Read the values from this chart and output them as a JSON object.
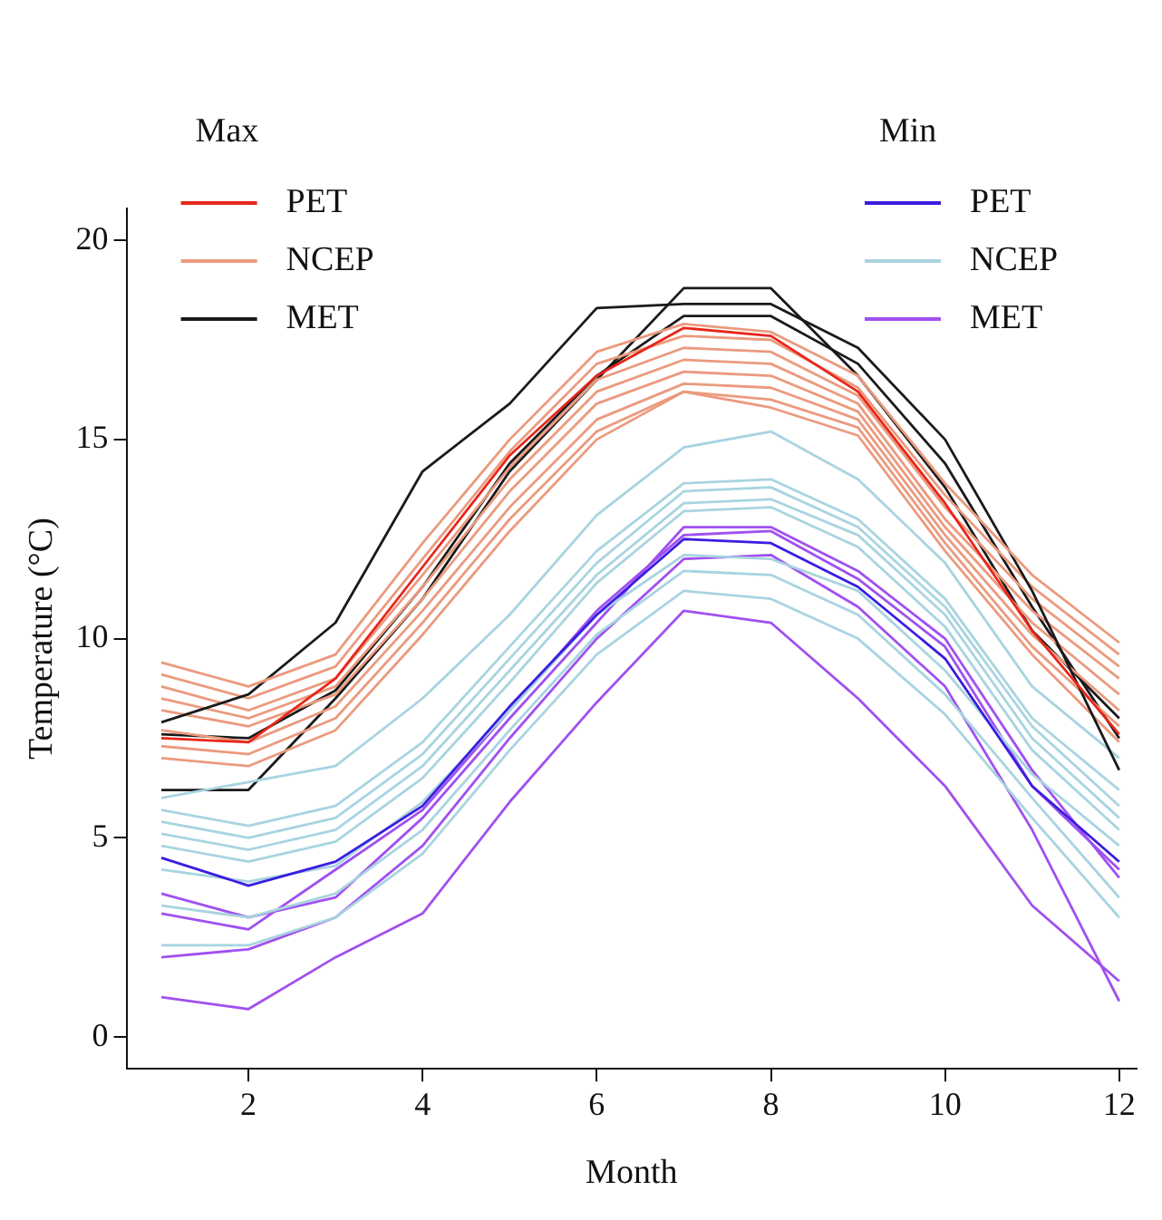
{
  "chart_data": {
    "type": "line",
    "xlabel": "Month",
    "ylabel": "Temperature (°C)",
    "x": [
      1,
      2,
      3,
      4,
      5,
      6,
      7,
      8,
      9,
      10,
      11,
      12
    ],
    "xlim": [
      0.6,
      12.2
    ],
    "ylim": [
      -0.8,
      20.8
    ],
    "xticks": [
      2,
      4,
      6,
      8,
      10,
      12
    ],
    "yticks": [
      0,
      5,
      10,
      15,
      20
    ],
    "grid": false,
    "legend": "top",
    "marker": "none",
    "line_style": "solid",
    "annotations": [
      "Max",
      "Min"
    ],
    "series": [
      {
        "name": "PET",
        "color": "#e8261a",
        "values": [
          7.5,
          7.4,
          9.0,
          11.8,
          14.6,
          16.6,
          17.8,
          17.6,
          16.2,
          13.4,
          10.2,
          7.6
        ]
      },
      {
        "name": "NCEP",
        "color": "#eb9a7e",
        "values": [
          9.4,
          8.8,
          9.6,
          12.4,
          15.0,
          17.2,
          17.9,
          17.7,
          16.6,
          13.9,
          11.6,
          9.9
        ]
      },
      {
        "name": "MET",
        "color": "#1a1a1a",
        "values": [
          7.9,
          8.6,
          10.4,
          14.2,
          15.9,
          18.3,
          18.4,
          18.4,
          17.3,
          15.0,
          11.2,
          6.7
        ]
      },
      {
        "name": "PET",
        "color": "#3a1de0",
        "values": [
          4.5,
          3.8,
          4.4,
          5.8,
          8.3,
          10.6,
          12.5,
          12.4,
          11.3,
          9.5,
          6.3,
          4.4
        ]
      },
      {
        "name": "NCEP",
        "color": "#a8d4e0",
        "values": [
          6.0,
          6.4,
          6.8,
          8.5,
          10.6,
          13.1,
          14.8,
          15.2,
          14.0,
          11.9,
          8.8,
          7.0
        ]
      },
      {
        "name": "MET",
        "color": "#a050f0",
        "values": [
          1.0,
          0.7,
          2.0,
          3.1,
          5.9,
          8.4,
          10.7,
          10.4,
          8.5,
          6.3,
          3.3,
          1.4
        ]
      },
      {
        "color": "#eb9a7e",
        "values": [
          9.1,
          8.5,
          9.3,
          12.0,
          14.7,
          16.9,
          17.6,
          17.5,
          16.3,
          13.6,
          11.3,
          9.6
        ]
      },
      {
        "color": "#eb9a7e",
        "values": [
          8.8,
          8.2,
          9.0,
          11.6,
          14.3,
          16.5,
          17.3,
          17.2,
          16.1,
          13.3,
          11.0,
          9.3
        ]
      },
      {
        "color": "#eb9a7e",
        "values": [
          8.5,
          8.0,
          8.8,
          11.3,
          14.0,
          16.2,
          17.0,
          16.9,
          15.9,
          13.0,
          10.7,
          9.0
        ]
      },
      {
        "color": "#eb9a7e",
        "values": [
          8.2,
          7.8,
          8.6,
          11.0,
          13.7,
          15.9,
          16.7,
          16.6,
          15.7,
          12.8,
          10.4,
          8.6
        ]
      },
      {
        "color": "#eb9a7e",
        "values": [
          7.7,
          7.4,
          8.3,
          10.7,
          13.3,
          15.5,
          16.4,
          16.3,
          15.5,
          12.6,
          10.1,
          8.2
        ]
      },
      {
        "color": "#eb9a7e",
        "values": [
          7.3,
          7.1,
          8.0,
          10.4,
          13.0,
          15.2,
          16.2,
          16.0,
          15.3,
          12.4,
          9.8,
          7.8
        ]
      },
      {
        "color": "#eb9a7e",
        "values": [
          7.0,
          6.8,
          7.7,
          10.1,
          12.7,
          15.0,
          16.2,
          15.8,
          15.1,
          12.2,
          9.6,
          7.4
        ]
      },
      {
        "color": "#1a1a1a",
        "values": [
          7.6,
          7.5,
          8.7,
          11.3,
          14.4,
          16.6,
          18.1,
          18.1,
          16.9,
          14.4,
          10.8,
          7.5
        ]
      },
      {
        "color": "#1a1a1a",
        "values": [
          6.2,
          6.2,
          8.5,
          11.0,
          14.2,
          16.5,
          18.8,
          18.8,
          16.6,
          13.8,
          10.2,
          8.0
        ]
      },
      {
        "color": "#a8d4e0",
        "values": [
          5.7,
          5.3,
          5.8,
          7.4,
          9.8,
          12.2,
          13.9,
          14.0,
          13.0,
          11.0,
          8.0,
          6.2
        ]
      },
      {
        "color": "#a8d4e0",
        "values": [
          5.4,
          5.0,
          5.5,
          7.1,
          9.5,
          11.9,
          13.7,
          13.8,
          12.8,
          10.8,
          7.8,
          5.8
        ]
      },
      {
        "color": "#a8d4e0",
        "values": [
          5.1,
          4.7,
          5.2,
          6.8,
          9.2,
          11.6,
          13.4,
          13.5,
          12.6,
          10.6,
          7.5,
          5.5
        ]
      },
      {
        "color": "#a8d4e0",
        "values": [
          4.8,
          4.4,
          4.9,
          6.5,
          8.9,
          11.4,
          13.2,
          13.3,
          12.3,
          10.3,
          7.2,
          5.2
        ]
      },
      {
        "color": "#a8d4e0",
        "values": [
          4.2,
          3.9,
          4.3,
          5.9,
          8.2,
          10.6,
          12.1,
          12.0,
          11.2,
          9.2,
          6.6,
          4.8
        ]
      },
      {
        "color": "#a8d4e0",
        "values": [
          3.3,
          3.0,
          3.6,
          5.2,
          7.7,
          10.1,
          11.7,
          11.6,
          10.6,
          8.6,
          6.0,
          3.5
        ]
      },
      {
        "color": "#a8d4e0",
        "values": [
          2.3,
          2.3,
          3.0,
          4.6,
          7.2,
          9.6,
          11.2,
          11.0,
          10.0,
          8.1,
          5.5,
          3.0
        ]
      },
      {
        "color": "#a050f0",
        "values": [
          2.0,
          2.2,
          3.0,
          4.8,
          7.5,
          10.0,
          12.0,
          12.1,
          10.8,
          8.8,
          5.2,
          0.9
        ]
      },
      {
        "color": "#a050f0",
        "values": [
          3.1,
          2.7,
          4.2,
          5.7,
          8.2,
          10.7,
          12.6,
          12.7,
          11.5,
          9.8,
          6.3,
          4.2
        ]
      },
      {
        "color": "#a050f0",
        "values": [
          3.6,
          3.0,
          3.5,
          5.5,
          8.0,
          10.4,
          12.8,
          12.8,
          11.7,
          10.0,
          6.7,
          4.0
        ]
      }
    ]
  }
}
